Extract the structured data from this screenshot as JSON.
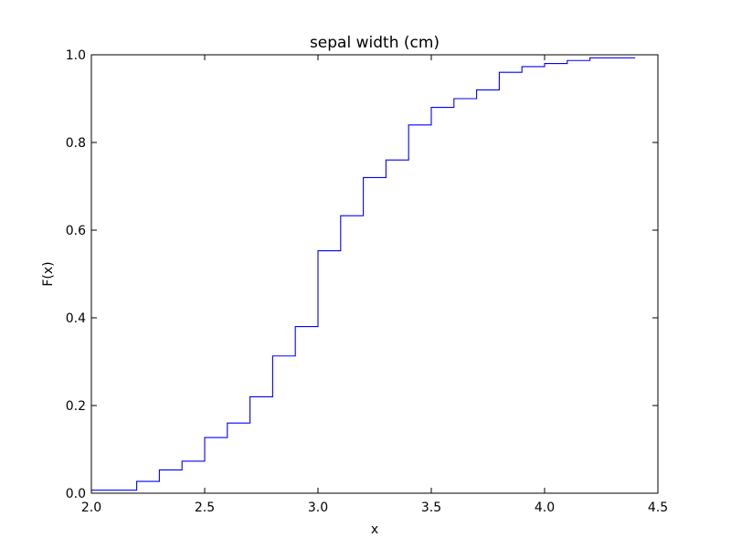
{
  "chart_data": {
    "type": "line",
    "step": "post",
    "title": "sepal width (cm)",
    "xlabel": "x",
    "ylabel": "F(x)",
    "xlim": [
      2.0,
      4.5
    ],
    "ylim": [
      0.0,
      1.0
    ],
    "grid": false,
    "legend": "none",
    "xticks": [
      "2.0",
      "2.5",
      "3.0",
      "3.5",
      "4.0",
      "4.5"
    ],
    "yticks": [
      "0.0",
      "0.2",
      "0.4",
      "0.6",
      "0.8",
      "1.0"
    ],
    "series": [
      {
        "color": "#0000ff",
        "x": [
          2.0,
          2.2,
          2.3,
          2.4,
          2.5,
          2.6,
          2.7,
          2.8,
          2.9,
          3.0,
          3.1,
          3.2,
          3.3,
          3.4,
          3.5,
          3.6,
          3.7,
          3.8,
          3.9,
          4.0,
          4.1,
          4.2,
          4.4
        ],
        "y": [
          0.007,
          0.027,
          0.053,
          0.073,
          0.127,
          0.16,
          0.22,
          0.313,
          0.38,
          0.553,
          0.633,
          0.72,
          0.76,
          0.84,
          0.88,
          0.9,
          0.92,
          0.96,
          0.973,
          0.98,
          0.987,
          0.993,
          0.993
        ]
      }
    ]
  }
}
